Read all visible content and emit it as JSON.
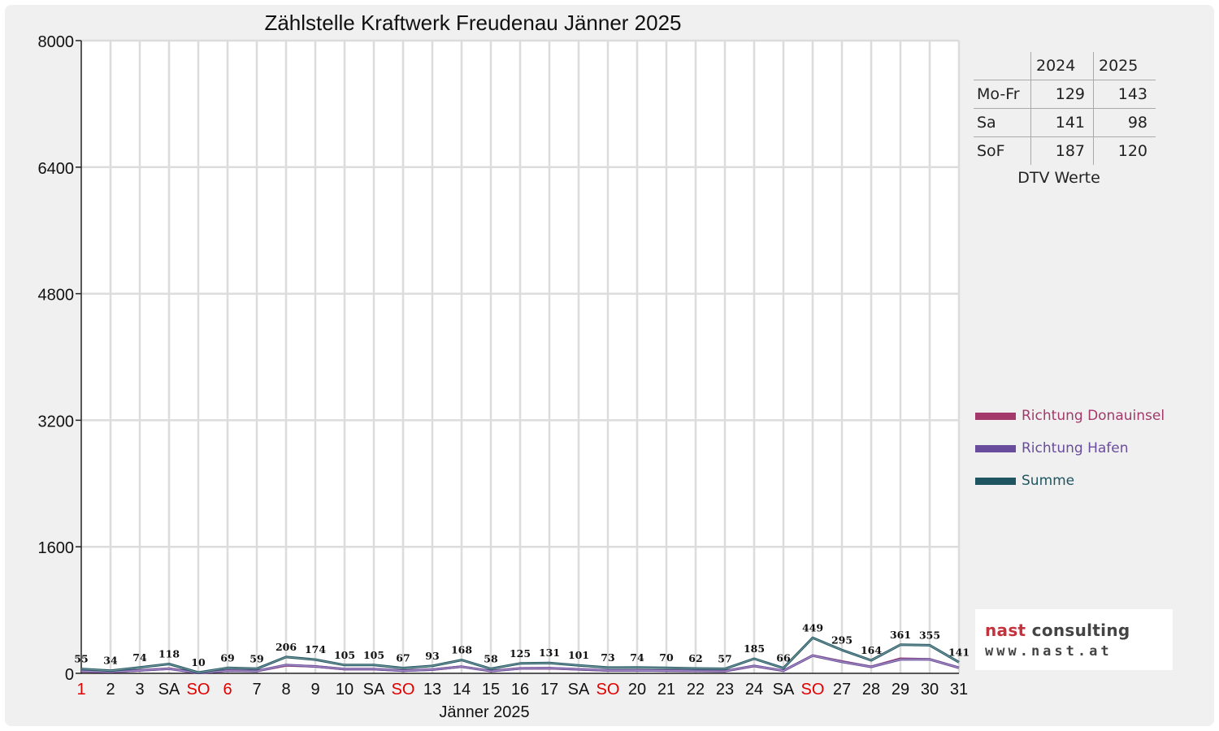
{
  "chart_data": {
    "type": "line",
    "title": "Zählstelle Kraftwerk Freudenau Jänner 2025",
    "xlabel": "Jänner 2025",
    "ylabel": "",
    "ylim": [
      0,
      8000
    ],
    "yticks": [
      0,
      1600,
      3200,
      4800,
      6400,
      8000
    ],
    "grid": true,
    "legend_position": "right",
    "categories": [
      "1",
      "2",
      "3",
      "SA",
      "SO",
      "6",
      "7",
      "8",
      "9",
      "10",
      "SA",
      "SO",
      "13",
      "14",
      "15",
      "16",
      "17",
      "SA",
      "SO",
      "20",
      "21",
      "22",
      "23",
      "24",
      "SA",
      "SO",
      "27",
      "28",
      "29",
      "30",
      "31"
    ],
    "red_categories": [
      0,
      4,
      5,
      11,
      18,
      25
    ],
    "series": [
      {
        "name": "Richtung Donauinsel",
        "color": "#a3396b",
        "values": [
          27,
          17,
          37,
          60,
          5,
          35,
          30,
          100,
          87,
          52,
          52,
          34,
          46,
          84,
          29,
          63,
          65,
          50,
          36,
          37,
          35,
          31,
          28,
          92,
          33,
          225,
          150,
          82,
          185,
          178,
          70
        ]
      },
      {
        "name": "Richtung Hafen",
        "color": "#6a4c9c",
        "values": [
          28,
          17,
          37,
          58,
          5,
          34,
          29,
          106,
          87,
          53,
          53,
          33,
          47,
          84,
          29,
          62,
          66,
          51,
          37,
          37,
          35,
          31,
          29,
          93,
          33,
          224,
          145,
          82,
          176,
          177,
          71
        ]
      },
      {
        "name": "Summe",
        "color": "#1f5560",
        "values": [
          55,
          34,
          74,
          118,
          10,
          69,
          59,
          206,
          174,
          105,
          105,
          67,
          93,
          168,
          58,
          125,
          131,
          101,
          73,
          74,
          70,
          62,
          57,
          185,
          66,
          449,
          295,
          164,
          361,
          355,
          141
        ]
      }
    ],
    "data_labels": [
      55,
      34,
      74,
      118,
      10,
      69,
      59,
      206,
      174,
      105,
      105,
      67,
      93,
      168,
      58,
      125,
      131,
      101,
      73,
      74,
      70,
      62,
      57,
      185,
      66,
      449,
      295,
      164,
      361,
      355,
      141
    ]
  },
  "dtv_table": {
    "caption": "DTV Werte",
    "headers": [
      "",
      "2024",
      "2025"
    ],
    "rows": [
      {
        "label": "Mo-Fr",
        "v2024": "129",
        "v2025": "143"
      },
      {
        "label": "Sa",
        "v2024": "141",
        "v2025": "98"
      },
      {
        "label": "SoF",
        "v2024": "187",
        "v2025": "120"
      }
    ]
  },
  "logo": {
    "word1": "nast",
    "word2": "consulting",
    "url": "www.nast.at"
  }
}
